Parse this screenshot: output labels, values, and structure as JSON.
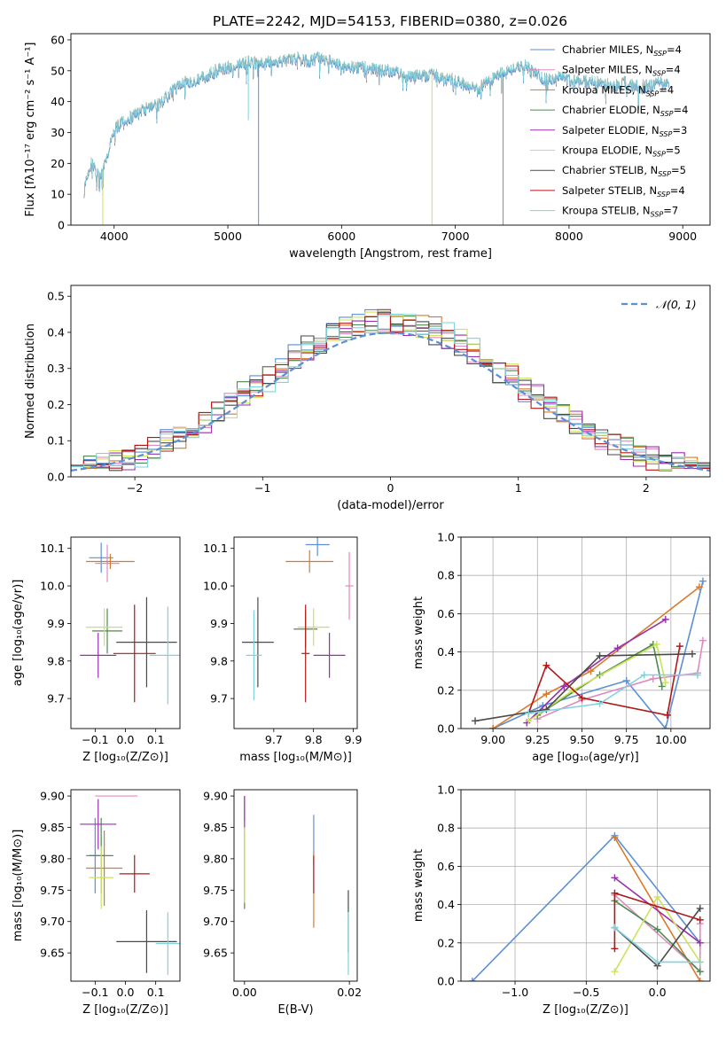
{
  "title": "PLATE=2242, MJD=54153, FIBERID=0380, z=0.026",
  "chart_data": [
    {
      "id": "spectrum",
      "type": "line",
      "xlabel": "wavelength [Angstrom, rest frame]",
      "ylabel": "Flux [fλ10⁻¹⁷ erg cm⁻² s⁻¹ A⁻¹]",
      "xlim": [
        3620,
        9240
      ],
      "ylim": [
        0,
        62
      ],
      "xticks": [
        4000,
        5000,
        6000,
        7000,
        8000,
        9000
      ],
      "yticks": [
        0,
        10,
        20,
        30,
        40,
        50,
        60
      ],
      "continuum": [
        [
          3735,
          11
        ],
        [
          3800,
          20
        ],
        [
          3880,
          15
        ],
        [
          3950,
          24
        ],
        [
          4000,
          31
        ],
        [
          4100,
          34
        ],
        [
          4200,
          36
        ],
        [
          4300,
          38
        ],
        [
          4400,
          39
        ],
        [
          4500,
          43
        ],
        [
          4600,
          46
        ],
        [
          4700,
          47
        ],
        [
          4800,
          48
        ],
        [
          4900,
          50
        ],
        [
          5000,
          51
        ],
        [
          5100,
          52
        ],
        [
          5200,
          53
        ],
        [
          5300,
          52
        ],
        [
          5400,
          53
        ],
        [
          5500,
          53
        ],
        [
          5600,
          54
        ],
        [
          5700,
          53
        ],
        [
          5800,
          54
        ],
        [
          5900,
          53
        ],
        [
          6000,
          52
        ],
        [
          6100,
          51
        ],
        [
          6200,
          51
        ],
        [
          6300,
          50
        ],
        [
          6400,
          50
        ],
        [
          6500,
          49
        ],
        [
          6600,
          48
        ],
        [
          6700,
          48
        ],
        [
          6800,
          49
        ],
        [
          6900,
          47
        ],
        [
          7000,
          47
        ],
        [
          7100,
          45
        ],
        [
          7200,
          44
        ],
        [
          7300,
          47
        ],
        [
          7400,
          49
        ],
        [
          7500,
          50
        ],
        [
          7600,
          52
        ],
        [
          7700,
          49
        ],
        [
          7800,
          47
        ],
        [
          7900,
          48
        ],
        [
          8000,
          47
        ],
        [
          8100,
          46
        ],
        [
          8200,
          47
        ],
        [
          8300,
          46
        ],
        [
          8400,
          45
        ],
        [
          8500,
          46
        ],
        [
          8600,
          45
        ],
        [
          8700,
          45
        ],
        [
          8800,
          46
        ],
        [
          8880,
          45
        ]
      ],
      "dips": [
        {
          "x": 5270,
          "y": 0,
          "series": "Chabrier MILES, N_SSP=4"
        },
        {
          "x": 6795,
          "y": 0,
          "series": "Kroupa ELODIE, N_SSP=5"
        },
        {
          "x": 7420,
          "y": 0,
          "series": "Kroupa MILES, N_SSP=4"
        },
        {
          "x": 3900,
          "y": 0,
          "series": "Kroupa ELODIE, N_SSP=5"
        },
        {
          "x": 5180,
          "y": 34,
          "series": "Kroupa STELIB, N_SSP=7"
        }
      ]
    },
    {
      "id": "residuals",
      "type": "area",
      "xlabel": "(data-model)/error",
      "ylabel": "Normed distribution",
      "xlim": [
        -2.5,
        2.5
      ],
      "ylim": [
        0,
        0.53
      ],
      "xticks": [
        -2,
        -1,
        0,
        1,
        2
      ],
      "yticks": [
        0.0,
        0.1,
        0.2,
        0.3,
        0.4,
        0.5
      ],
      "bin_width": 0.1,
      "gaussian_label": "𝒩(0, 1)"
    },
    {
      "id": "age-vs-Z",
      "type": "scatter",
      "xlabel": "Z [log₁₀(Z/Z⊙)]",
      "ylabel": "age  [log₁₀(age/yr)]",
      "xlim": [
        -0.18,
        0.18
      ],
      "ylim": [
        9.62,
        10.13
      ],
      "xticks": [
        -0.1,
        0.0,
        0.1
      ],
      "yticks": [
        9.7,
        9.8,
        9.9,
        10.0,
        10.1
      ],
      "points": [
        {
          "series": 0,
          "x": -0.08,
          "y": 10.075,
          "xerr": 0.04,
          "yerr": 0.04
        },
        {
          "series": 1,
          "x": -0.06,
          "y": 10.06,
          "xerr": 0.04,
          "yerr": 0.05
        },
        {
          "series": 2,
          "x": -0.05,
          "y": 10.065,
          "xerr": 0.08,
          "yerr": 0.02
        },
        {
          "series": 3,
          "x": -0.06,
          "y": 9.88,
          "xerr": 0.05,
          "yerr": 0.06
        },
        {
          "series": 4,
          "x": -0.09,
          "y": 9.815,
          "xerr": 0.06,
          "yerr": 0.06
        },
        {
          "series": 5,
          "x": -0.07,
          "y": 9.89,
          "xerr": 0.06,
          "yerr": 0.05
        },
        {
          "series": 6,
          "x": 0.07,
          "y": 9.85,
          "xerr": 0.1,
          "yerr": 0.12
        },
        {
          "series": 7,
          "x": 0.03,
          "y": 9.82,
          "xerr": 0.07,
          "yerr": 0.13
        },
        {
          "series": 8,
          "x": 0.14,
          "y": 9.815,
          "xerr": 0.06,
          "yerr": 0.13
        }
      ]
    },
    {
      "id": "age-vs-mass",
      "type": "scatter",
      "xlabel": "mass [log₁₀(M/M⊙)]",
      "ylabel": "",
      "xlim": [
        9.6,
        9.91
      ],
      "ylim": [
        9.62,
        10.13
      ],
      "xticks": [
        9.7,
        9.8,
        9.9
      ],
      "yticks": [
        9.7,
        9.8,
        9.9,
        10.0,
        10.1
      ],
      "points": [
        {
          "series": 0,
          "x": 9.81,
          "y": 10.11,
          "xerr": 0.03,
          "yerr": 0.03
        },
        {
          "series": 1,
          "x": 9.89,
          "y": 10.0,
          "xerr": 0.01,
          "yerr": 0.09
        },
        {
          "series": 2,
          "x": 9.79,
          "y": 10.065,
          "xerr": 0.06,
          "yerr": 0.03
        },
        {
          "series": 3,
          "x": 9.78,
          "y": 9.885,
          "xerr": 0.03,
          "yerr": 0.05
        },
        {
          "series": 4,
          "x": 9.84,
          "y": 9.815,
          "xerr": 0.04,
          "yerr": 0.06
        },
        {
          "series": 5,
          "x": 9.8,
          "y": 9.89,
          "xerr": 0.04,
          "yerr": 0.05
        },
        {
          "series": 6,
          "x": 9.66,
          "y": 9.85,
          "xerr": 0.04,
          "yerr": 0.12
        },
        {
          "series": 7,
          "x": 9.78,
          "y": 9.82,
          "xerr": 0.01,
          "yerr": 0.13
        },
        {
          "series": 8,
          "x": 9.65,
          "y": 9.815,
          "xerr": 0.02,
          "yerr": 0.12
        }
      ]
    },
    {
      "id": "weight-vs-age",
      "type": "line",
      "xlabel": "age  [log₁₀(age/yr)]",
      "ylabel": "mass weight",
      "xlim": [
        8.82,
        10.22
      ],
      "ylim": [
        0,
        1
      ],
      "xticks": [
        9.0,
        9.25,
        9.5,
        9.75,
        10.0
      ],
      "xtick_labels": [
        "9.00",
        "9.25",
        "9.50",
        "9.75",
        "10.00"
      ],
      "yticks": [
        0.0,
        0.2,
        0.4,
        0.6,
        0.8,
        1.0
      ],
      "grid": true,
      "lines": [
        {
          "series": 0,
          "x": [
            9.0,
            9.28,
            9.75,
            9.97,
            10.18
          ],
          "y": [
            0.0,
            0.12,
            0.25,
            0.0,
            0.77
          ]
        },
        {
          "series": 1,
          "x": [
            9.25,
            9.5,
            9.9,
            10.15,
            10.18
          ],
          "y": [
            0.05,
            0.15,
            0.26,
            0.29,
            0.46
          ]
        },
        {
          "series": 2,
          "x": [
            9.0,
            9.3,
            9.55,
            10.16
          ],
          "y": [
            0.0,
            0.18,
            0.3,
            0.74
          ]
        },
        {
          "series": 3,
          "x": [
            9.25,
            9.6,
            9.9,
            9.95
          ],
          "y": [
            0.07,
            0.28,
            0.44,
            0.22
          ]
        },
        {
          "series": 4,
          "x": [
            9.19,
            9.4,
            9.7,
            9.97
          ],
          "y": [
            0.03,
            0.22,
            0.42,
            0.57
          ]
        },
        {
          "series": 5,
          "x": [
            9.2,
            9.45,
            9.92,
            9.97
          ],
          "y": [
            0.04,
            0.2,
            0.44,
            0.24
          ]
        },
        {
          "series": 6,
          "x": [
            8.9,
            9.3,
            9.6,
            10.12
          ],
          "y": [
            0.04,
            0.1,
            0.38,
            0.39
          ]
        },
        {
          "series": 7,
          "x": [
            9.2,
            9.3,
            9.5,
            9.98,
            10.05
          ],
          "y": [
            0.08,
            0.33,
            0.16,
            0.07,
            0.43
          ]
        },
        {
          "series": 8,
          "x": [
            9.2,
            9.6,
            9.85,
            10.15
          ],
          "y": [
            0.08,
            0.13,
            0.28,
            0.28
          ]
        }
      ]
    },
    {
      "id": "mass-vs-Z",
      "type": "scatter",
      "xlabel": "Z [log₁₀(Z/Z⊙)]",
      "ylabel": "mass [log₁₀(M/M⊙)]",
      "xlim": [
        -0.18,
        0.18
      ],
      "ylim": [
        9.605,
        9.91
      ],
      "xticks": [
        -0.1,
        0.0,
        0.1
      ],
      "yticks": [
        9.65,
        9.7,
        9.75,
        9.8,
        9.85,
        9.9
      ],
      "points": [
        {
          "series": 0,
          "x": -0.1,
          "y": 9.805,
          "xerr": 0.03,
          "yerr": 0.06
        },
        {
          "series": 1,
          "x": -0.03,
          "y": 9.9,
          "xerr": 0.07,
          "yerr": 0.0
        },
        {
          "series": 2,
          "x": -0.07,
          "y": 9.785,
          "xerr": 0.06,
          "yerr": 0.06
        },
        {
          "series": 3,
          "x": -0.08,
          "y": 9.805,
          "xerr": 0.04,
          "yerr": 0.06
        },
        {
          "series": 4,
          "x": -0.09,
          "y": 9.855,
          "xerr": 0.06,
          "yerr": 0.04
        },
        {
          "series": 5,
          "x": -0.08,
          "y": 9.77,
          "xerr": 0.04,
          "yerr": 0.05
        },
        {
          "series": 6,
          "x": 0.07,
          "y": 9.668,
          "xerr": 0.1,
          "yerr": 0.05
        },
        {
          "series": 7,
          "x": 0.03,
          "y": 9.776,
          "xerr": 0.05,
          "yerr": 0.03
        },
        {
          "series": 8,
          "x": 0.14,
          "y": 9.665,
          "xerr": 0.04,
          "yerr": 0.05
        }
      ]
    },
    {
      "id": "mass-vs-ebv",
      "type": "scatter",
      "xlabel": "E(B-V)",
      "ylabel": "",
      "xlim": [
        -0.002,
        0.0215
      ],
      "ylim": [
        9.605,
        9.91
      ],
      "xticks": [
        0.0,
        0.02
      ],
      "xtick_labels": [
        "0.00",
        "0.02"
      ],
      "yticks": [
        9.65,
        9.7,
        9.75,
        9.8,
        9.85,
        9.9
      ],
      "points": [
        {
          "series": 0,
          "x": 0.0132,
          "y": 9.83,
          "xerr": 0,
          "yerr": 0.04
        },
        {
          "series": 1,
          "x": 0.0,
          "y": 9.88,
          "xerr": 0,
          "yerr": 0.02
        },
        {
          "series": 2,
          "x": 0.0132,
          "y": 9.75,
          "xerr": 0,
          "yerr": 0.06
        },
        {
          "series": 3,
          "x": 0.0,
          "y": 9.78,
          "xerr": 0,
          "yerr": 0.06
        },
        {
          "series": 4,
          "x": 0.0,
          "y": 9.87,
          "xerr": 0,
          "yerr": 0.03
        },
        {
          "series": 5,
          "x": 0.0,
          "y": 9.79,
          "xerr": 0,
          "yerr": 0.06
        },
        {
          "series": 6,
          "x": 0.0198,
          "y": 9.7,
          "xerr": 0,
          "yerr": 0.05
        },
        {
          "series": 7,
          "x": 0.0132,
          "y": 9.775,
          "xerr": 0,
          "yerr": 0.03
        },
        {
          "series": 8,
          "x": 0.0198,
          "y": 9.665,
          "xerr": 0,
          "yerr": 0.05
        }
      ]
    },
    {
      "id": "weight-vs-Z",
      "type": "line",
      "xlabel": "Z [log₁₀(Z/Z⊙)]",
      "ylabel": "mass weight",
      "xlim": [
        -1.38,
        0.37
      ],
      "ylim": [
        0,
        1
      ],
      "xticks": [
        -1.0,
        -0.5,
        0.0
      ],
      "xtick_labels": [
        "−1.0",
        "−0.5",
        "0.0"
      ],
      "yticks": [
        0.0,
        0.2,
        0.4,
        0.6,
        0.8,
        1.0
      ],
      "grid": true,
      "lines": [
        {
          "series": 0,
          "x": [
            -1.3,
            -0.3,
            0.3
          ],
          "y": [
            0.0,
            0.76,
            0.2
          ]
        },
        {
          "series": 1,
          "x": [
            -0.3,
            0.3,
            0.3
          ],
          "y": [
            0.45,
            0.05,
            0.3
          ]
        },
        {
          "series": 2,
          "x": [
            -0.3,
            0.3
          ],
          "y": [
            0.75,
            0.0
          ]
        },
        {
          "series": 3,
          "x": [
            -0.3,
            0.0,
            0.3
          ],
          "y": [
            0.42,
            0.27,
            0.05
          ]
        },
        {
          "series": 4,
          "x": [
            -0.3,
            0.3
          ],
          "y": [
            0.54,
            0.2
          ]
        },
        {
          "series": 5,
          "x": [
            -0.3,
            0.0,
            0.3
          ],
          "y": [
            0.05,
            0.44,
            0.1
          ]
        },
        {
          "series": 6,
          "x": [
            -0.3,
            0.0,
            0.3
          ],
          "y": [
            0.28,
            0.08,
            0.38
          ]
        },
        {
          "series": 7,
          "x": [
            -0.3,
            -0.3,
            0.3
          ],
          "y": [
            0.17,
            0.46,
            0.32
          ]
        },
        {
          "series": 8,
          "x": [
            -0.3,
            0.0,
            0.3
          ],
          "y": [
            0.28,
            0.1,
            0.1
          ]
        }
      ]
    }
  ],
  "series": [
    {
      "name": "Chabrier MILES, N",
      "sub": "SSP",
      "suffix": "=4",
      "color": "#5b8fd6"
    },
    {
      "name": "Salpeter MILES, N",
      "sub": "SSP",
      "suffix": "=4",
      "color": "#e08abf"
    },
    {
      "name": "Kroupa MILES, N",
      "sub": "SSP",
      "suffix": "=4",
      "color": "#d97a2b"
    },
    {
      "name": "Chabrier ELODIE, N",
      "sub": "SSP",
      "suffix": "=4",
      "color": "#4f8a52"
    },
    {
      "name": "Salpeter ELODIE, N",
      "sub": "SSP",
      "suffix": "=3",
      "color": "#9b2fae"
    },
    {
      "name": "Kroupa ELODIE, N",
      "sub": "SSP",
      "suffix": "=5",
      "color": "#cde35a"
    },
    {
      "name": "Chabrier STELIB, N",
      "sub": "SSP",
      "suffix": "=5",
      "color": "#4a4a4a"
    },
    {
      "name": "Salpeter STELIB, N",
      "sub": "SSP",
      "suffix": "=4",
      "color": "#b01818"
    },
    {
      "name": "Kroupa STELIB, N",
      "sub": "SSP",
      "suffix": "=7",
      "color": "#7fd3dd"
    }
  ]
}
